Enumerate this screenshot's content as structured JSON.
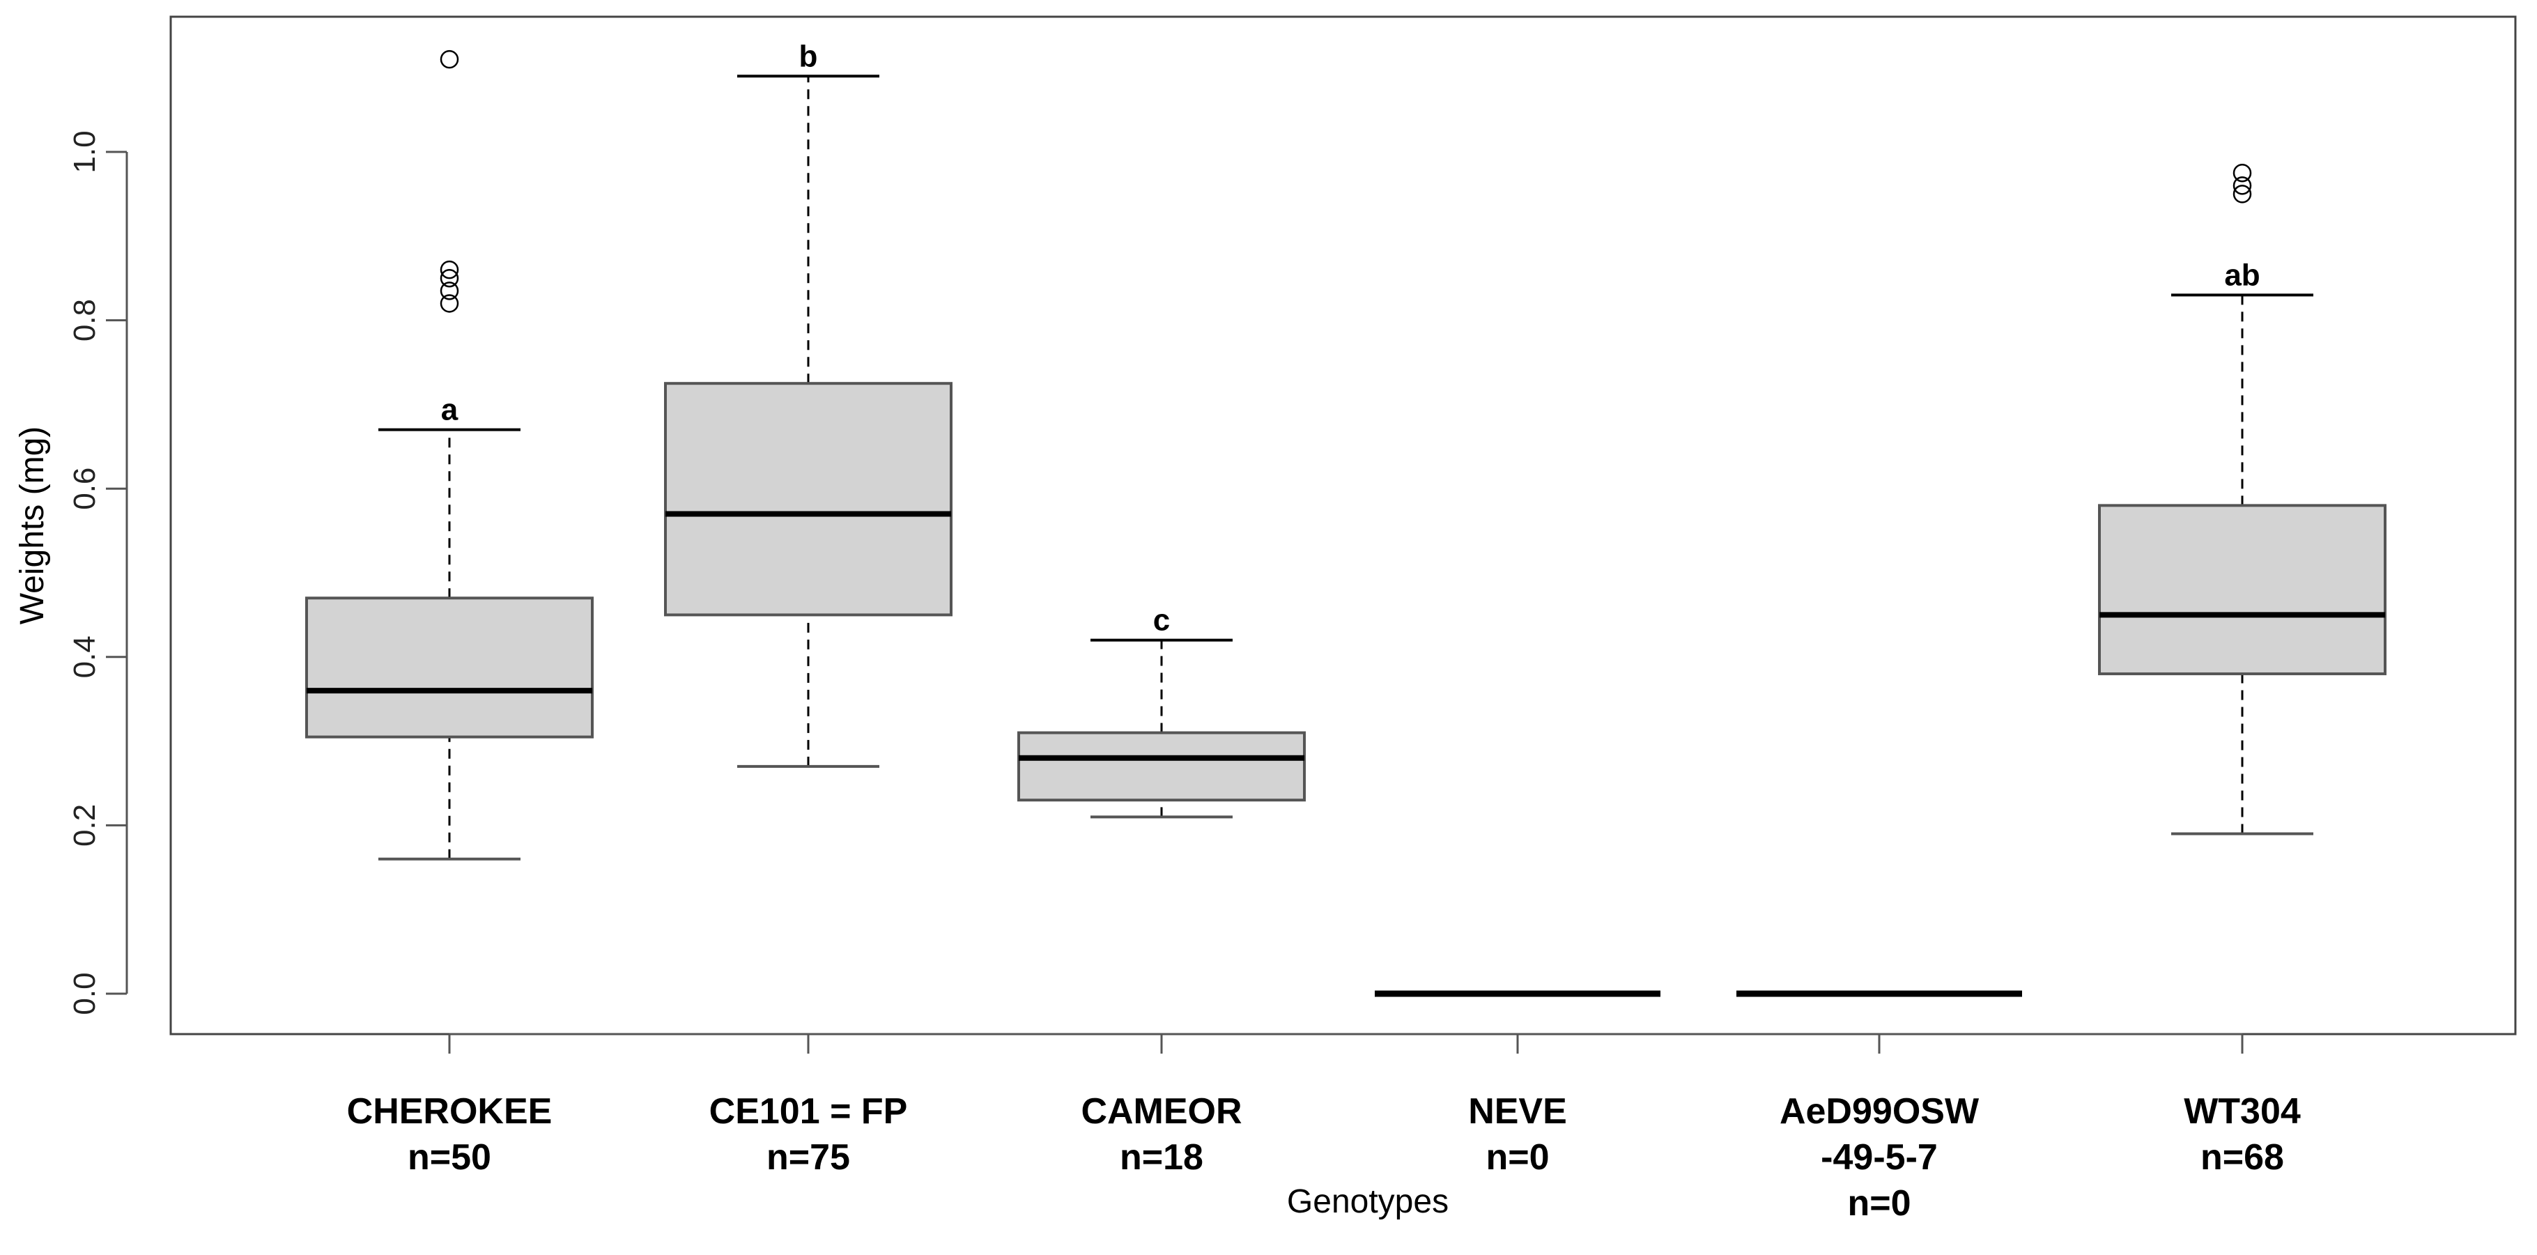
{
  "chart_data": {
    "type": "boxplot",
    "title": "",
    "xlabel": "Genotypes",
    "ylabel": "Weights (mg)",
    "ylim": [
      -0.05,
      1.16
    ],
    "yticks": [
      0.0,
      0.2,
      0.4,
      0.6,
      0.8,
      1.0
    ],
    "ytick_labels": [
      "0.0",
      "0.2",
      "0.4",
      "0.6",
      "0.8",
      "1.0"
    ],
    "colors": {
      "box_fill": "#d3d3d3",
      "line": "#000000",
      "frame": "#444444"
    },
    "groups": [
      {
        "label_lines": [
          "CHEROKEE",
          "n=50"
        ],
        "n": 50,
        "whisker_low": 0.16,
        "q1": 0.305,
        "median": 0.36,
        "q3": 0.47,
        "whisker_high": 0.67,
        "outliers": [
          0.82,
          0.835,
          0.85,
          0.86,
          1.11
        ],
        "letter": "a"
      },
      {
        "label_lines": [
          "CE101 = FP",
          "n=75"
        ],
        "n": 75,
        "whisker_low": 0.27,
        "q1": 0.45,
        "median": 0.57,
        "q3": 0.725,
        "whisker_high": 1.09,
        "outliers": [],
        "letter": "b"
      },
      {
        "label_lines": [
          "CAMEOR",
          "n=18"
        ],
        "n": 18,
        "whisker_low": 0.21,
        "q1": 0.23,
        "median": 0.28,
        "q3": 0.31,
        "whisker_high": 0.42,
        "outliers": [],
        "letter": "c"
      },
      {
        "label_lines": [
          "NEVE",
          "n=0"
        ],
        "n": 0,
        "whisker_low": 0,
        "q1": 0,
        "median": 0,
        "q3": 0,
        "whisker_high": 0,
        "outliers": [],
        "letter": ""
      },
      {
        "label_lines": [
          "AeD99OSW",
          "-49-5-7",
          "n=0"
        ],
        "n": 0,
        "whisker_low": 0,
        "q1": 0,
        "median": 0,
        "q3": 0,
        "whisker_high": 0,
        "outliers": [],
        "letter": ""
      },
      {
        "label_lines": [
          "WT304",
          "n=68"
        ],
        "n": 68,
        "whisker_low": 0.19,
        "q1": 0.38,
        "median": 0.45,
        "q3": 0.58,
        "whisker_high": 0.83,
        "outliers": [
          0.95,
          0.96,
          0.975
        ],
        "letter": "ab"
      }
    ]
  }
}
